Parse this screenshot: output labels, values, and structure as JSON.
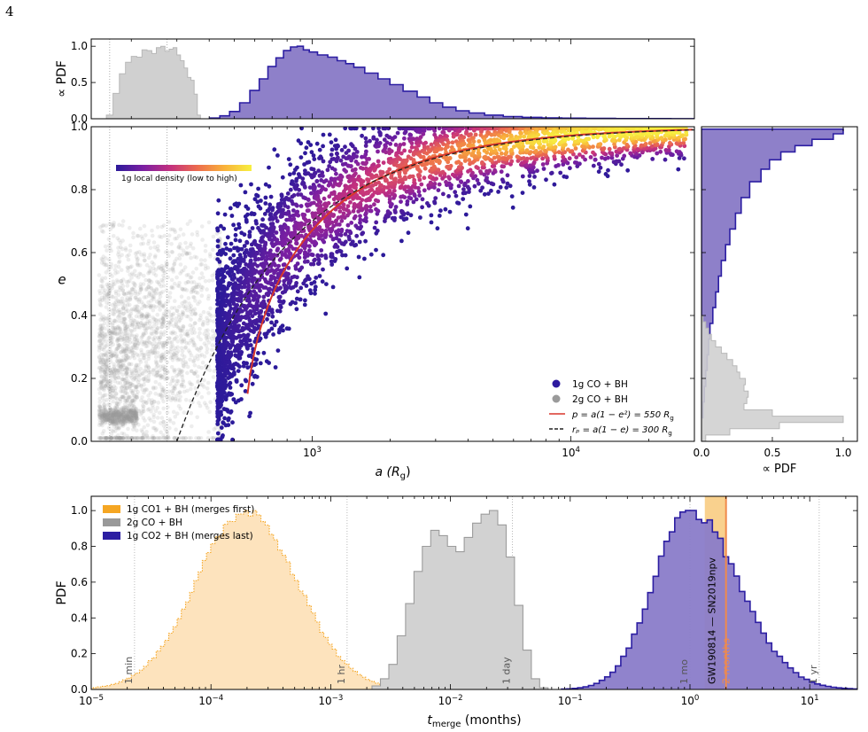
{
  "page_number": "4",
  "chart_data": [
    {
      "id": "top-marginal-a",
      "type": "histogram",
      "ylabel": "∝ PDF",
      "xscale": "log",
      "xlim": [
        140,
        30000
      ],
      "ylim": [
        0,
        1.1
      ],
      "y_ticks": [
        "0.0",
        "0.5",
        "1.0"
      ],
      "y_tick_values": [
        0,
        0.5,
        1.0
      ],
      "series": [
        {
          "name": "2g CO + BH",
          "color": "#b8b8b8",
          "x": [
            165,
            175,
            185,
            195,
            205,
            215,
            225,
            235,
            245,
            255,
            265,
            275,
            285,
            295,
            305,
            315,
            325,
            335,
            345,
            355,
            365
          ],
          "values": [
            0.05,
            0.35,
            0.62,
            0.78,
            0.86,
            0.85,
            0.95,
            0.94,
            0.9,
            0.98,
            1.0,
            0.93,
            0.96,
            0.98,
            0.88,
            0.8,
            0.7,
            0.57,
            0.53,
            0.34,
            0.05
          ]
        },
        {
          "name": "1g CO + BH",
          "color": "#2c1ea2",
          "x": [
            420,
            460,
            500,
            550,
            600,
            650,
            700,
            750,
            800,
            850,
            900,
            950,
            1000,
            1100,
            1200,
            1300,
            1400,
            1500,
            1700,
            1900,
            2100,
            2400,
            2700,
            3000,
            3400,
            3800,
            4300,
            5000,
            6000,
            7000,
            8500,
            10000,
            13000,
            17000,
            22000,
            27000
          ],
          "values": [
            0.01,
            0.04,
            0.1,
            0.22,
            0.39,
            0.55,
            0.72,
            0.84,
            0.94,
            0.99,
            1.0,
            0.95,
            0.92,
            0.88,
            0.85,
            0.8,
            0.76,
            0.71,
            0.63,
            0.55,
            0.47,
            0.38,
            0.3,
            0.22,
            0.16,
            0.11,
            0.08,
            0.05,
            0.03,
            0.02,
            0.012,
            0.008,
            0.005,
            0.003,
            0.002,
            0.001
          ]
        }
      ]
    },
    {
      "id": "main-scatter",
      "type": "scatter",
      "xlabel": "a (R",
      "xlabel_sub": "g",
      "xlabel_end": ")",
      "ylabel": "e",
      "xscale": "log",
      "xlim": [
        140,
        30000
      ],
      "ylim": [
        0,
        1.0
      ],
      "x_ticks": [
        {
          "value": 1000,
          "base": "10",
          "exp": "3"
        },
        {
          "value": 10000,
          "base": "10",
          "exp": "4"
        }
      ],
      "y_ticks": [
        "0.0",
        "0.2",
        "0.4",
        "0.6",
        "0.8",
        "1.0"
      ],
      "y_tick_values": [
        0,
        0.2,
        0.4,
        0.6,
        0.8,
        1.0
      ],
      "vlines": [
        165,
        275
      ],
      "colorbar_label": "1g local density (low to high)",
      "colorbar_colors": [
        "#2b1a9a",
        "#7b1fa2",
        "#c3307f",
        "#ec6b4e",
        "#f9b23a",
        "#f7f040"
      ],
      "clouds": [
        {
          "name": "2g CO + BH",
          "color": "#9a9a9a",
          "a_range": [
            150,
            420
          ],
          "e_center": 0.28,
          "e_spread": 0.18
        },
        {
          "name": "1g CO + BH",
          "color": "#2d1a9f",
          "model": "rp",
          "rp": 300,
          "a_range": [
            430,
            28000
          ],
          "e_spread": 0.12
        }
      ],
      "legend": [
        {
          "label": "1g CO + BH",
          "kind": "dot",
          "color": "#2d1a9f"
        },
        {
          "label": "2g CO + BH",
          "kind": "dot",
          "color": "#9a9a9a"
        },
        {
          "label": "p = a(1 − e²) = 550 R",
          "sub": "g",
          "kind": "solid",
          "color": "#d8372b"
        },
        {
          "label": "rₚ = a(1 − e) = 300 R",
          "sub": "g",
          "kind": "dashed",
          "color": "#222222"
        }
      ],
      "curves": [
        {
          "name": "p = 550 Rg",
          "kind": "semilatus",
          "value": 550,
          "color": "#d8372b"
        },
        {
          "name": "rp = 300 Rg",
          "kind": "pericenter",
          "value": 300,
          "color": "#222222"
        }
      ],
      "legend_position": "lower-right"
    },
    {
      "id": "right-marginal-e",
      "type": "histogram",
      "orientation": "horizontal",
      "xlabel": "∝ PDF",
      "xlim": [
        0,
        1.1
      ],
      "ylim": [
        0,
        1.0
      ],
      "x_ticks": [
        "0.0",
        "0.5",
        "1.0"
      ],
      "x_tick_values": [
        0,
        0.5,
        1.0
      ],
      "series": [
        {
          "name": "1g CO + BH",
          "color": "#2c1ea2",
          "e": [
            0.1,
            0.15,
            0.2,
            0.25,
            0.3,
            0.35,
            0.4,
            0.45,
            0.5,
            0.55,
            0.6,
            0.65,
            0.7,
            0.75,
            0.8,
            0.85,
            0.88,
            0.91,
            0.93,
            0.95,
            0.97,
            0.985
          ],
          "values": [
            0.01,
            0.02,
            0.03,
            0.04,
            0.05,
            0.06,
            0.08,
            0.1,
            0.12,
            0.14,
            0.17,
            0.2,
            0.24,
            0.28,
            0.34,
            0.42,
            0.48,
            0.56,
            0.66,
            0.78,
            0.93,
            1.0
          ]
        },
        {
          "name": "2g CO + BH",
          "color": "#b8b8b8",
          "e": [
            0.01,
            0.03,
            0.05,
            0.07,
            0.09,
            0.11,
            0.13,
            0.15,
            0.17,
            0.19,
            0.21,
            0.23,
            0.25,
            0.27,
            0.29,
            0.31,
            0.33,
            0.35,
            0.37,
            0.39
          ],
          "values": [
            0.03,
            0.2,
            0.55,
            1.0,
            0.5,
            0.3,
            0.32,
            0.33,
            0.3,
            0.31,
            0.27,
            0.25,
            0.22,
            0.18,
            0.14,
            0.1,
            0.07,
            0.05,
            0.03,
            0.01
          ]
        }
      ]
    },
    {
      "id": "merge-time-pdf",
      "type": "histogram",
      "xlabel": "t",
      "xlabel_sub": "merge",
      "xlabel_end": " (months)",
      "ylabel": "PDF",
      "xscale": "log",
      "xlim": [
        1e-05,
        25
      ],
      "ylim": [
        0,
        1.08
      ],
      "x_ticks": [
        {
          "value": 1e-05,
          "base": "10",
          "exp": "−5"
        },
        {
          "value": 0.0001,
          "base": "10",
          "exp": "−4"
        },
        {
          "value": 0.001,
          "base": "10",
          "exp": "−3"
        },
        {
          "value": 0.01,
          "base": "10",
          "exp": "−2"
        },
        {
          "value": 0.1,
          "base": "10",
          "exp": "−1"
        },
        {
          "value": 1,
          "base": "10",
          "exp": "0"
        },
        {
          "value": 10,
          "base": "10",
          "exp": "1"
        }
      ],
      "y_ticks": [
        "0.0",
        "0.2",
        "0.4",
        "0.6",
        "0.8",
        "1.0"
      ],
      "y_tick_values": [
        0,
        0.2,
        0.4,
        0.6,
        0.8,
        1.0
      ],
      "time_markers": [
        {
          "label": "1 min",
          "value": 2.3e-05
        },
        {
          "label": "1 hr",
          "value": 0.00137
        },
        {
          "label": "1 day",
          "value": 0.0329
        },
        {
          "label": "1 mo",
          "value": 1.0
        },
        {
          "label": "1 yr",
          "value": 12.0
        }
      ],
      "event_band": {
        "label": "GW190814 — SN2019npv",
        "from": 1.33,
        "to": 2.0,
        "color": "#f8c97a"
      },
      "event_line": {
        "label": "2 months",
        "value": 2.0,
        "color": "#f08a4b"
      },
      "legend": [
        {
          "label": "1g CO1 + BH (merges first)",
          "color": "#f5a623"
        },
        {
          "label": "2g CO + BH",
          "color": "#999999"
        },
        {
          "label": "1g CO2 + BH (merges last)",
          "color": "#2c1ea2"
        }
      ],
      "legend_position": "upper-left",
      "series": [
        {
          "name": "1g CO1 + BH (merges first)",
          "color": "#f5a623",
          "fill": "#fde3bd",
          "center_log": -3.7,
          "sigma_log": 0.42,
          "range_log": [
            -5.0,
            -2.35
          ]
        },
        {
          "name": "2g CO + BH",
          "color": "#9c9c9c",
          "fill": "#d2d2d2",
          "x_log": [
            -2.62,
            -2.55,
            -2.48,
            -2.41,
            -2.34,
            -2.27,
            -2.2,
            -2.13,
            -2.06,
            -1.99,
            -1.92,
            -1.85,
            -1.78,
            -1.71,
            -1.64,
            -1.57,
            -1.5,
            -1.43,
            -1.36,
            -1.29,
            -1.22
          ],
          "values": [
            0.02,
            0.06,
            0.14,
            0.3,
            0.48,
            0.66,
            0.8,
            0.89,
            0.86,
            0.8,
            0.77,
            0.85,
            0.93,
            0.98,
            1.0,
            0.92,
            0.74,
            0.47,
            0.22,
            0.06,
            0.01
          ]
        },
        {
          "name": "1g CO2 + BH (merges last)",
          "color": "#2c1ea2",
          "fill": "#8a7cc9",
          "center_log": 0.0,
          "sigma_log": 0.3,
          "range_log": [
            -1.05,
            1.4
          ]
        }
      ]
    }
  ]
}
